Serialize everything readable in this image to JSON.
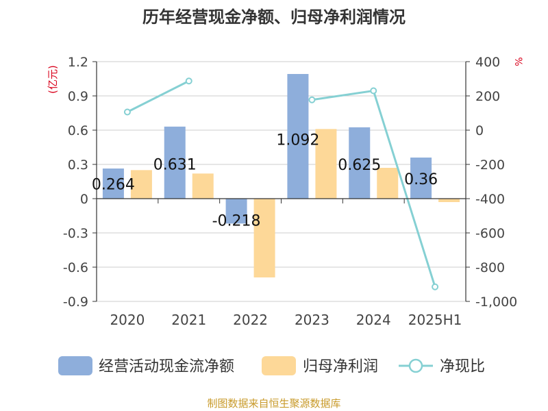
{
  "chart_data": {
    "type": "bar",
    "title": "历年经营现金净额、归母净利润情况",
    "categories": [
      "2020",
      "2021",
      "2022",
      "2023",
      "2024",
      "2025H1"
    ],
    "series": [
      {
        "name": "经营活动现金流净额",
        "kind": "bar",
        "axis": "left",
        "color": "#8eaedb",
        "values": [
          0.264,
          0.631,
          -0.218,
          1.092,
          0.625,
          0.36
        ],
        "labels": [
          "0.264",
          "0.631",
          "-0.218",
          "1.092",
          "0.625",
          "0.36"
        ]
      },
      {
        "name": "归母净利润",
        "kind": "bar",
        "axis": "left",
        "color": "#fdd898",
        "values": [
          0.25,
          0.22,
          -0.69,
          0.61,
          0.27,
          -0.03
        ]
      },
      {
        "name": "净现比",
        "kind": "line",
        "axis": "right",
        "color": "#85d0d3",
        "values": [
          106,
          287,
          null,
          177,
          230,
          -915
        ]
      }
    ],
    "y_left": {
      "label": "(亿元)",
      "ylim": [
        -0.9,
        1.2
      ],
      "ticks": [
        "1.2",
        "0.9",
        "0.6",
        "0.3",
        "0",
        "-0.3",
        "-0.6",
        "-0.9"
      ]
    },
    "y_right": {
      "label": "%",
      "ylim": [
        -1000,
        400
      ],
      "ticks": [
        "400",
        "200",
        "0",
        "-200",
        "-400",
        "-600",
        "-800",
        "-1,000"
      ]
    },
    "grid": true,
    "legend_position": "bottom"
  },
  "source": "制图数据来自恒生聚源数据库",
  "colors": {
    "title": "#333333",
    "axis_text": "#444444",
    "unit_text": "#d9001b",
    "source_text": "#c89a2a",
    "grid": "#cccccc"
  }
}
